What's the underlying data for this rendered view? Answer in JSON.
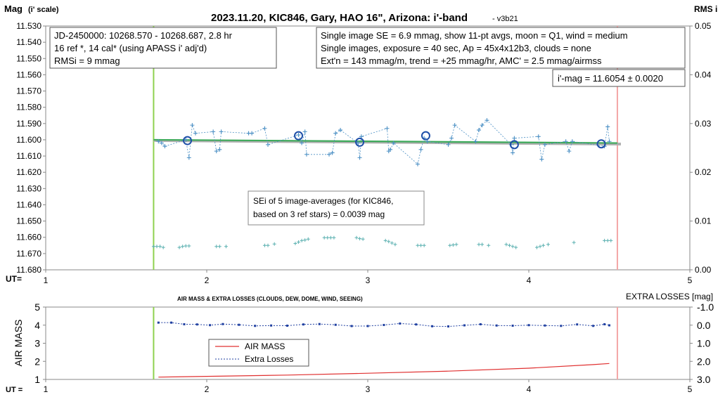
{
  "chart_data": [
    {
      "type": "scatter",
      "title": "2023.11.20, KIC846, Gary, HAO 16\", Arizona: i'-band",
      "version": "- v3b21",
      "ylabel": "Mag",
      "ylabel_sub": "(i' scale)",
      "y2label": "RMS i",
      "xlabel": "UT=",
      "xlim": [
        1,
        5
      ],
      "ylim": [
        11.53,
        11.68
      ],
      "y_inverted": true,
      "y2lim": [
        0.0,
        0.05
      ],
      "x_ticks": [
        "1",
        "2",
        "3",
        "4",
        "5"
      ],
      "y_ticks": [
        "11.530",
        "11.540",
        "11.550",
        "11.560",
        "11.570",
        "11.580",
        "11.590",
        "11.600",
        "11.610",
        "11.620",
        "11.630",
        "11.640",
        "11.650",
        "11.660",
        "11.670",
        "11.680"
      ],
      "y2_ticks": [
        "0.00",
        "0.01",
        "0.02",
        "0.03",
        "0.04",
        "0.05"
      ],
      "vertical_lines": [
        {
          "x": 1.67,
          "color": "#8fd14f"
        },
        {
          "x": 4.55,
          "color": "#f4a6a6"
        }
      ],
      "annotations": {
        "box1": [
          "JD-2450000: 10268.570 - 10268.687, 2.8  hr",
          "16 ref *, 14 cal* (using APASS i' adj'd)",
          "RMSi = 9 mmag"
        ],
        "box2": [
          "Single image SE = 6.9 mmag, show 11-pt avgs, moon = Q1, wind = medium",
          "Single images, exposure = 40 sec, Ap = 45x4x12b3, clouds = none",
          "Ext'n = 143 mmag/m, trend = +25 mmag/hr, AMC' = 2.5 mmag/airmss"
        ],
        "box3": [
          "i'-mag = 11.6054 ± 0.0020"
        ],
        "box4": [
          "SEi of 5 image-averages (for KIC846,",
          "based on 3 ref stars) = 0.0039 mag"
        ]
      },
      "series": [
        {
          "role": "single-images",
          "color": "#4a8fc4",
          "x": [
            1.7,
            1.72,
            1.74,
            1.87,
            1.89,
            1.91,
            1.93,
            2.04,
            2.06,
            2.08,
            2.09,
            2.26,
            2.28,
            2.36,
            2.38,
            2.57,
            2.59,
            2.61,
            2.62,
            2.76,
            2.78,
            2.8,
            2.83,
            2.94,
            2.95,
            2.96,
            3.12,
            3.13,
            3.14,
            3.16,
            3.31,
            3.33,
            3.35,
            3.37,
            3.5,
            3.52,
            3.54,
            3.67,
            3.69,
            3.71,
            3.74,
            3.89,
            3.9,
            3.91,
            4.06,
            4.08,
            4.1,
            4.23,
            4.25,
            4.27,
            4.47,
            4.49,
            4.5
          ],
          "y": [
            11.601,
            11.602,
            11.604,
            11.6,
            11.611,
            11.591,
            11.596,
            11.595,
            11.607,
            11.606,
            11.595,
            11.596,
            11.596,
            11.593,
            11.603,
            11.597,
            11.602,
            11.595,
            11.609,
            11.609,
            11.608,
            11.596,
            11.594,
            11.602,
            11.611,
            11.598,
            11.593,
            11.607,
            11.606,
            11.602,
            11.615,
            11.606,
            11.599,
            11.601,
            11.603,
            11.599,
            11.591,
            11.601,
            11.594,
            11.591,
            11.588,
            11.603,
            11.608,
            11.599,
            11.598,
            11.612,
            11.603,
            11.601,
            11.607,
            11.601,
            11.604,
            11.592,
            11.601
          ]
        },
        {
          "role": "image-averages",
          "color": "#1f4fa8",
          "x": [
            1.88,
            2.57,
            2.95,
            3.36,
            3.91,
            4.45
          ],
          "y": [
            11.6005,
            11.5975,
            11.6015,
            11.5975,
            11.603,
            11.6025
          ]
        },
        {
          "role": "trend-line",
          "color": "#3daa5a",
          "x": [
            1.67,
            4.55
          ],
          "y": [
            11.6,
            11.602
          ]
        },
        {
          "role": "rms",
          "color": "#5ab0b0",
          "axis": "y2",
          "x": [
            1.67,
            1.69,
            1.71,
            1.73,
            1.83,
            1.85,
            1.87,
            1.89,
            2.06,
            2.08,
            2.12,
            2.36,
            2.38,
            2.42,
            2.55,
            2.57,
            2.59,
            2.61,
            2.63,
            2.73,
            2.75,
            2.77,
            2.79,
            2.93,
            2.95,
            2.97,
            3.11,
            3.13,
            3.15,
            3.17,
            3.31,
            3.33,
            3.35,
            3.51,
            3.53,
            3.55,
            3.69,
            3.71,
            3.75,
            3.86,
            3.88,
            3.9,
            3.92,
            4.05,
            4.07,
            4.09,
            4.12,
            4.28,
            4.47,
            4.49,
            4.51
          ],
          "y": [
            0.0048,
            0.0048,
            0.0048,
            0.0046,
            0.0046,
            0.0048,
            0.0049,
            0.0049,
            0.0048,
            0.0048,
            0.0048,
            0.005,
            0.005,
            0.0053,
            0.0054,
            0.0057,
            0.006,
            0.0061,
            0.0063,
            0.0066,
            0.0066,
            0.0066,
            0.0066,
            0.0066,
            0.0064,
            0.0063,
            0.006,
            0.0058,
            0.0055,
            0.0052,
            0.005,
            0.005,
            0.005,
            0.005,
            0.0051,
            0.0052,
            0.0052,
            0.0052,
            0.005,
            0.0052,
            0.005,
            0.0048,
            0.0046,
            0.0046,
            0.0048,
            0.005,
            0.0052,
            0.0056,
            0.006,
            0.006,
            0.006
          ]
        }
      ]
    },
    {
      "type": "line",
      "title": "AIR MASS & EXTRA LOSSES (CLOUDS, DEW, DOME, WIND, SEEING)",
      "ylabel": "AIR MASS",
      "y2label": "EXTRA LOSSES [mag]",
      "xlabel": "UT =",
      "xlim": [
        1,
        5
      ],
      "ylim": [
        1,
        5
      ],
      "y2lim": [
        -1.0,
        3.0
      ],
      "y2_inverted": true,
      "x_ticks": [
        "1",
        "2",
        "3",
        "4",
        "5"
      ],
      "y_ticks": [
        "1",
        "2",
        "3",
        "4",
        "5"
      ],
      "y2_ticks": [
        "-1.0",
        "0.0",
        "1.0",
        "2.0",
        "3.0"
      ],
      "vertical_lines": [
        {
          "x": 1.67,
          "color": "#8fd14f"
        },
        {
          "x": 4.55,
          "color": "#f4a6a6"
        }
      ],
      "legend": {
        "placement": "center-left",
        "entries": [
          "AIR MASS",
          "Extra Losses"
        ]
      },
      "series": [
        {
          "name": "AIR MASS",
          "color": "#e03030",
          "x": [
            1.7,
            2.0,
            2.5,
            3.0,
            3.5,
            4.0,
            4.4,
            4.5
          ],
          "y": [
            1.13,
            1.17,
            1.24,
            1.34,
            1.46,
            1.62,
            1.82,
            1.88
          ]
        },
        {
          "name": "Extra Losses",
          "color": "#1f3fa0",
          "axis": "y2",
          "x": [
            1.7,
            1.78,
            1.86,
            1.94,
            2.02,
            2.1,
            2.2,
            2.3,
            2.4,
            2.5,
            2.6,
            2.7,
            2.8,
            2.9,
            3.0,
            3.1,
            3.2,
            3.3,
            3.4,
            3.5,
            3.6,
            3.7,
            3.8,
            3.9,
            4.0,
            4.1,
            4.2,
            4.3,
            4.4,
            4.47,
            4.5
          ],
          "y": [
            -0.14,
            -0.14,
            -0.05,
            -0.04,
            0.0,
            -0.06,
            -0.02,
            0.04,
            0.02,
            0.03,
            -0.04,
            -0.06,
            -0.02,
            0.05,
            0.05,
            -0.01,
            -0.09,
            -0.04,
            0.06,
            0.07,
            0.01,
            -0.05,
            0.02,
            0.03,
            0.0,
            0.02,
            0.04,
            -0.04,
            0.04,
            -0.05,
            0.01
          ]
        }
      ]
    }
  ]
}
